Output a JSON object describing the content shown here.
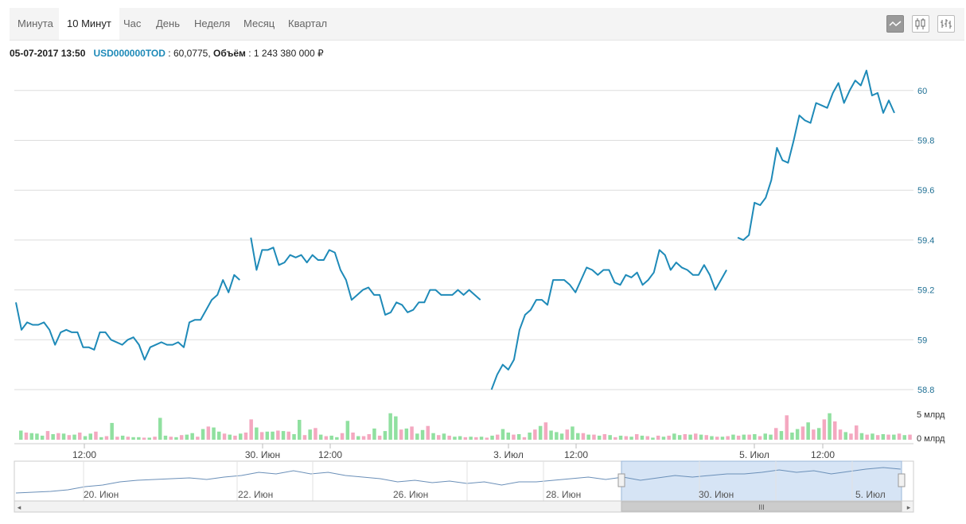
{
  "tabs": [
    {
      "label": "Минута",
      "active": false
    },
    {
      "label": "10 Минут",
      "active": true
    },
    {
      "label": "Час",
      "active": false
    },
    {
      "label": "День",
      "active": false
    },
    {
      "label": "Неделя",
      "active": false
    },
    {
      "label": "Месяц",
      "active": false
    },
    {
      "label": "Квартал",
      "active": false
    }
  ],
  "chart_type_buttons": [
    {
      "icon": "line-chart-icon",
      "active": true
    },
    {
      "icon": "candlestick-chart-icon",
      "active": false
    },
    {
      "icon": "ohlc-chart-icon",
      "active": false
    }
  ],
  "info": {
    "datetime": "05-07-2017 13:50",
    "symbol": "USD000000TOD",
    "price_sep": " : 60,0775, ",
    "volume_label": "Объём",
    "volume_value": ": 1 243 380 000 ₽"
  },
  "colors": {
    "price_line": "#1e8ab8",
    "volume_up": "#90e0a0",
    "volume_down": "#f4a8c0",
    "grid": "#dddddd",
    "navigator_selection": "#d6e4f5"
  },
  "chart_data": {
    "type": "line",
    "y_ticks": [
      "58.8",
      "59",
      "59.2",
      "59.4",
      "59.6",
      "59.8",
      "60"
    ],
    "ylim": [
      58.8,
      60.0
    ],
    "volume_ticks": [
      "0 млрд",
      "5 млрд"
    ],
    "x_ticks": [
      "12:00",
      "30. Июн",
      "12:00",
      "3. Июл",
      "12:00",
      "5. Июл",
      "12:00"
    ],
    "series_segments": [
      [
        59.15,
        59.04,
        59.07,
        59.06,
        59.06,
        59.07,
        59.04,
        58.98,
        59.03,
        59.04,
        59.03,
        59.03,
        58.97,
        58.97,
        58.96,
        59.03,
        59.03,
        59.0,
        58.99,
        58.98,
        59.0,
        59.01,
        58.98,
        58.92,
        58.97,
        58.98,
        58.99,
        58.98,
        58.98,
        58.99,
        58.97,
        59.07,
        59.08,
        59.08,
        59.12,
        59.16,
        59.18,
        59.24,
        59.19,
        59.26,
        59.24
      ],
      [
        59.41,
        59.28,
        59.36,
        59.36,
        59.37,
        59.3,
        59.31,
        59.34,
        59.33,
        59.34,
        59.31,
        59.34,
        59.32,
        59.32,
        59.36,
        59.35,
        59.28,
        59.24,
        59.16,
        59.18,
        59.2,
        59.21,
        59.18,
        59.18,
        59.1,
        59.11,
        59.15,
        59.14,
        59.11,
        59.12,
        59.15,
        59.15,
        59.2,
        59.2,
        59.18,
        59.18,
        59.18,
        59.2,
        59.18,
        59.2,
        59.18,
        59.16
      ],
      [
        58.8,
        58.86,
        58.9,
        58.88,
        58.92,
        59.04,
        59.1,
        59.12,
        59.16,
        59.16,
        59.14,
        59.24,
        59.24,
        59.24,
        59.22,
        59.19,
        59.24,
        59.29,
        59.28,
        59.26,
        59.28,
        59.28,
        59.23,
        59.22,
        59.26,
        59.25,
        59.27,
        59.22,
        59.24,
        59.27,
        59.36,
        59.34,
        59.28,
        59.31,
        59.29,
        59.28,
        59.26,
        59.26,
        59.3,
        59.26,
        59.2,
        59.24,
        59.28
      ],
      [
        59.41,
        59.4,
        59.42,
        59.55,
        59.54,
        59.57,
        59.64,
        59.77,
        59.72,
        59.71,
        59.8,
        59.9,
        59.88,
        59.87,
        59.95,
        59.94,
        59.93,
        59.99,
        60.03,
        59.95,
        60.0,
        60.04,
        60.02,
        60.08,
        59.98,
        59.99,
        59.91,
        59.96,
        59.91
      ]
    ],
    "volumes": [
      1.8,
      1.4,
      1.3,
      1.2,
      0.8,
      1.7,
      1.1,
      1.3,
      1.2,
      0.9,
      1.0,
      1.4,
      0.7,
      1.2,
      1.6,
      0.5,
      0.7,
      3.3,
      0.6,
      0.8,
      0.6,
      0.5,
      0.5,
      0.4,
      0.4,
      0.6,
      4.3,
      0.8,
      0.6,
      0.5,
      0.9,
      1.0,
      1.3,
      0.6,
      2.1,
      2.6,
      2.4,
      1.6,
      1.2,
      1.0,
      0.8,
      1.2,
      1.4,
      4.0,
      2.4,
      1.5,
      1.6,
      1.6,
      1.8,
      1.7,
      1.6,
      1.1,
      3.9,
      0.9,
      2.0,
      2.3,
      1.0,
      0.7,
      0.8,
      0.5,
      1.3,
      3.7,
      1.4,
      0.7,
      0.7,
      1.1,
      2.2,
      0.8,
      1.7,
      5.2,
      4.6,
      2.0,
      2.2,
      2.6,
      1.2,
      1.9,
      2.7,
      1.3,
      0.9,
      1.2,
      0.8,
      0.6,
      0.7,
      0.5,
      0.6,
      0.5,
      0.6,
      0.4,
      0.8,
      1.0,
      2.1,
      1.4,
      1.0,
      1.1,
      0.5,
      1.4,
      2.0,
      2.7,
      3.4,
      1.8,
      1.5,
      1.2,
      2.0,
      2.6,
      1.3,
      1.3,
      1.0,
      1.0,
      0.8,
      1.1,
      0.9,
      0.5,
      0.8,
      0.7,
      0.6,
      1.1,
      0.8,
      0.7,
      0.4,
      0.8,
      0.6,
      0.8,
      1.2,
      0.9,
      1.1,
      1.0,
      1.2,
      1.0,
      0.9,
      0.7,
      0.6,
      0.6,
      0.7,
      1.0,
      0.8,
      1.0,
      1.0,
      1.1,
      0.7,
      1.2,
      1.0,
      2.3,
      1.7,
      4.8,
      1.4,
      2.1,
      2.6,
      3.4,
      2.0,
      2.3,
      4.0,
      5.2,
      3.6,
      2.0,
      1.5,
      1.2,
      2.8,
      1.3,
      1.0,
      1.2,
      0.9,
      1.1,
      1.0,
      1.0,
      1.2,
      0.9,
      1.0
    ],
    "volume_colors": "GRGGGRGRGRGRGGRGRGRGRGGRGRGGRGRGGRGRGGRGRGRRGRGGRGRGGRGRGRGGRGRGRRGRGGGRGRGGRGRGRGGRGRGRGRGGRGRGRGRGGGRGGRGRGRGRGRGRGRGRGRGGRGRGRGRGRGRGRGRGGRGRGGRGRGRGRRGRRGRGRGRGR",
    "navigator": {
      "x_ticks": [
        "20. Июн",
        "22. Июн",
        "26. Июн",
        "28. Июн",
        "30. Июн",
        "5. Июл"
      ],
      "scrollbar_grip": "III"
    }
  }
}
